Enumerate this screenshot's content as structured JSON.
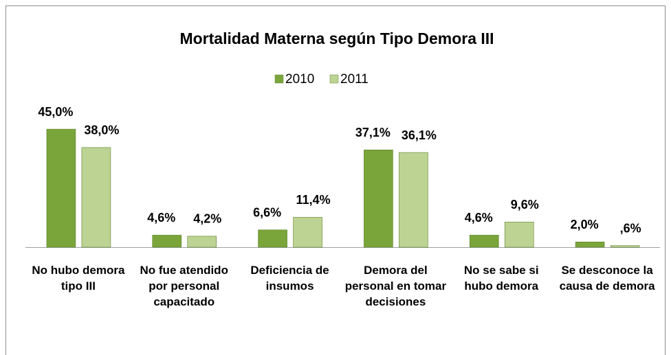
{
  "chart_data": {
    "type": "bar",
    "title": "Mortalidad Materna según Tipo Demora III",
    "categories": [
      "No hubo demora tipo III",
      "No fue atendido por personal capacitado",
      "Deficiencia de insumos",
      "Demora del personal en tomar decisiones",
      "No se sabe si hubo demora",
      "Se desconoce la causa de demora"
    ],
    "series": [
      {
        "name": "2010",
        "color": "#7aa53a",
        "values": [
          45.0,
          4.6,
          6.6,
          37.1,
          4.6,
          2.0
        ],
        "value_labels": [
          "45,0%",
          "4,6%",
          "6,6%",
          "37,1%",
          "4,6%",
          "2,0%"
        ]
      },
      {
        "name": "2011",
        "color": "#bcd393",
        "values": [
          38.0,
          4.2,
          11.4,
          36.1,
          9.6,
          0.6
        ],
        "value_labels": [
          "38,0%",
          "4,2%",
          "11,4%",
          "36,1%",
          "9,6%",
          ",6%"
        ]
      }
    ],
    "ylim": [
      0,
      50
    ],
    "legend": "top"
  }
}
